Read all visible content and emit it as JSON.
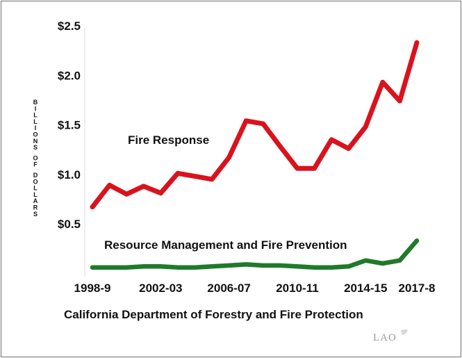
{
  "chart_data": {
    "type": "line",
    "ylabel": "BILLIONS OF DOLLARS",
    "subtitle": "California Department of Forestry and Fire Protection",
    "credit": "LAO",
    "x_tick_labels": [
      "1998-9",
      "2002-03",
      "2006-07",
      "2010-11",
      "2014-15",
      "2017-8"
    ],
    "y_tick_labels": [
      "$0.5",
      "$1.0",
      "$1.5",
      "$2.0",
      "$2.5"
    ],
    "ylim": [
      0.5,
      2.5
    ],
    "grid": false,
    "x": [
      "1998-99",
      "1999-00",
      "2000-01",
      "2001-02",
      "2002-03",
      "2003-04",
      "2004-05",
      "2005-06",
      "2006-07",
      "2007-08",
      "2008-09",
      "2009-10",
      "2010-11",
      "2011-12",
      "2012-13",
      "2013-14",
      "2014-15",
      "2015-16",
      "2016-17",
      "2017-18"
    ],
    "series": [
      {
        "name": "Fire Response",
        "color": "#d9131e",
        "values": [
          0.67,
          0.89,
          0.8,
          0.88,
          0.81,
          1.01,
          0.98,
          0.95,
          1.17,
          1.54,
          1.51,
          1.28,
          1.06,
          1.06,
          1.35,
          1.26,
          1.48,
          1.93,
          1.74,
          2.33
        ]
      },
      {
        "name": "Resource Management and Fire Prevention",
        "color": "#1f7a2a",
        "values": [
          0.06,
          0.06,
          0.06,
          0.07,
          0.07,
          0.06,
          0.06,
          0.07,
          0.08,
          0.09,
          0.08,
          0.08,
          0.07,
          0.06,
          0.06,
          0.07,
          0.13,
          0.1,
          0.13,
          0.33
        ]
      }
    ]
  }
}
